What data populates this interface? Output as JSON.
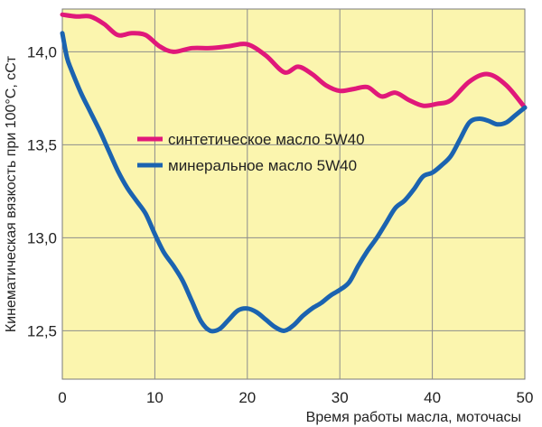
{
  "chart_data": {
    "type": "line",
    "xlabel": "Время работы масла, моточасы",
    "ylabel": "Кинематическая вязкость при 100°С, сСт",
    "xlim": [
      0,
      50
    ],
    "ylim": [
      12.24,
      14.23
    ],
    "x_ticks": [
      "0",
      "10",
      "20",
      "30",
      "40",
      "50"
    ],
    "y_ticks": [
      "12,5",
      "13,0",
      "13,5",
      "14,0"
    ],
    "grid": true,
    "legend_position": "center-left",
    "plot_background": "#fbf5ae",
    "series": [
      {
        "name": "синтетическое масло 5W40",
        "color": "#e0187a",
        "x": [
          0,
          1.5,
          3,
          4.5,
          6,
          7.5,
          9,
          10.5,
          12,
          14,
          16,
          18,
          20,
          22,
          24,
          25.5,
          27,
          28.5,
          30,
          31.5,
          33,
          34.5,
          36,
          37.5,
          39,
          40.5,
          42,
          44,
          46,
          48,
          50
        ],
        "y": [
          14.2,
          14.19,
          14.19,
          14.15,
          14.09,
          14.1,
          14.09,
          14.03,
          14.0,
          14.02,
          14.02,
          14.03,
          14.04,
          13.98,
          13.89,
          13.92,
          13.88,
          13.82,
          13.79,
          13.8,
          13.81,
          13.76,
          13.78,
          13.74,
          13.71,
          13.72,
          13.74,
          13.84,
          13.88,
          13.82,
          13.7
        ]
      },
      {
        "name": "минеральное масло 5W40",
        "color": "#1b63b0",
        "x": [
          0,
          0.5,
          1,
          2,
          3,
          4,
          5,
          6,
          7,
          8,
          9,
          10,
          11,
          12,
          13,
          14,
          15,
          16,
          17,
          18,
          19,
          20,
          21,
          22,
          23,
          24,
          25,
          26,
          27,
          28,
          29,
          30,
          31,
          32,
          33,
          34,
          35,
          36,
          37,
          38,
          39,
          40,
          41,
          42,
          43,
          44,
          45,
          46,
          47,
          48,
          49,
          50
        ],
        "y": [
          14.1,
          13.97,
          13.9,
          13.78,
          13.68,
          13.58,
          13.47,
          13.36,
          13.27,
          13.2,
          13.13,
          13.02,
          12.92,
          12.85,
          12.77,
          12.66,
          12.55,
          12.5,
          12.51,
          12.56,
          12.61,
          12.62,
          12.6,
          12.56,
          12.52,
          12.5,
          12.53,
          12.58,
          12.62,
          12.65,
          12.69,
          12.72,
          12.76,
          12.85,
          12.93,
          13.0,
          13.08,
          13.16,
          13.2,
          13.26,
          13.33,
          13.35,
          13.39,
          13.44,
          13.53,
          13.62,
          13.64,
          13.63,
          13.61,
          13.62,
          13.66,
          13.7
        ]
      }
    ]
  }
}
